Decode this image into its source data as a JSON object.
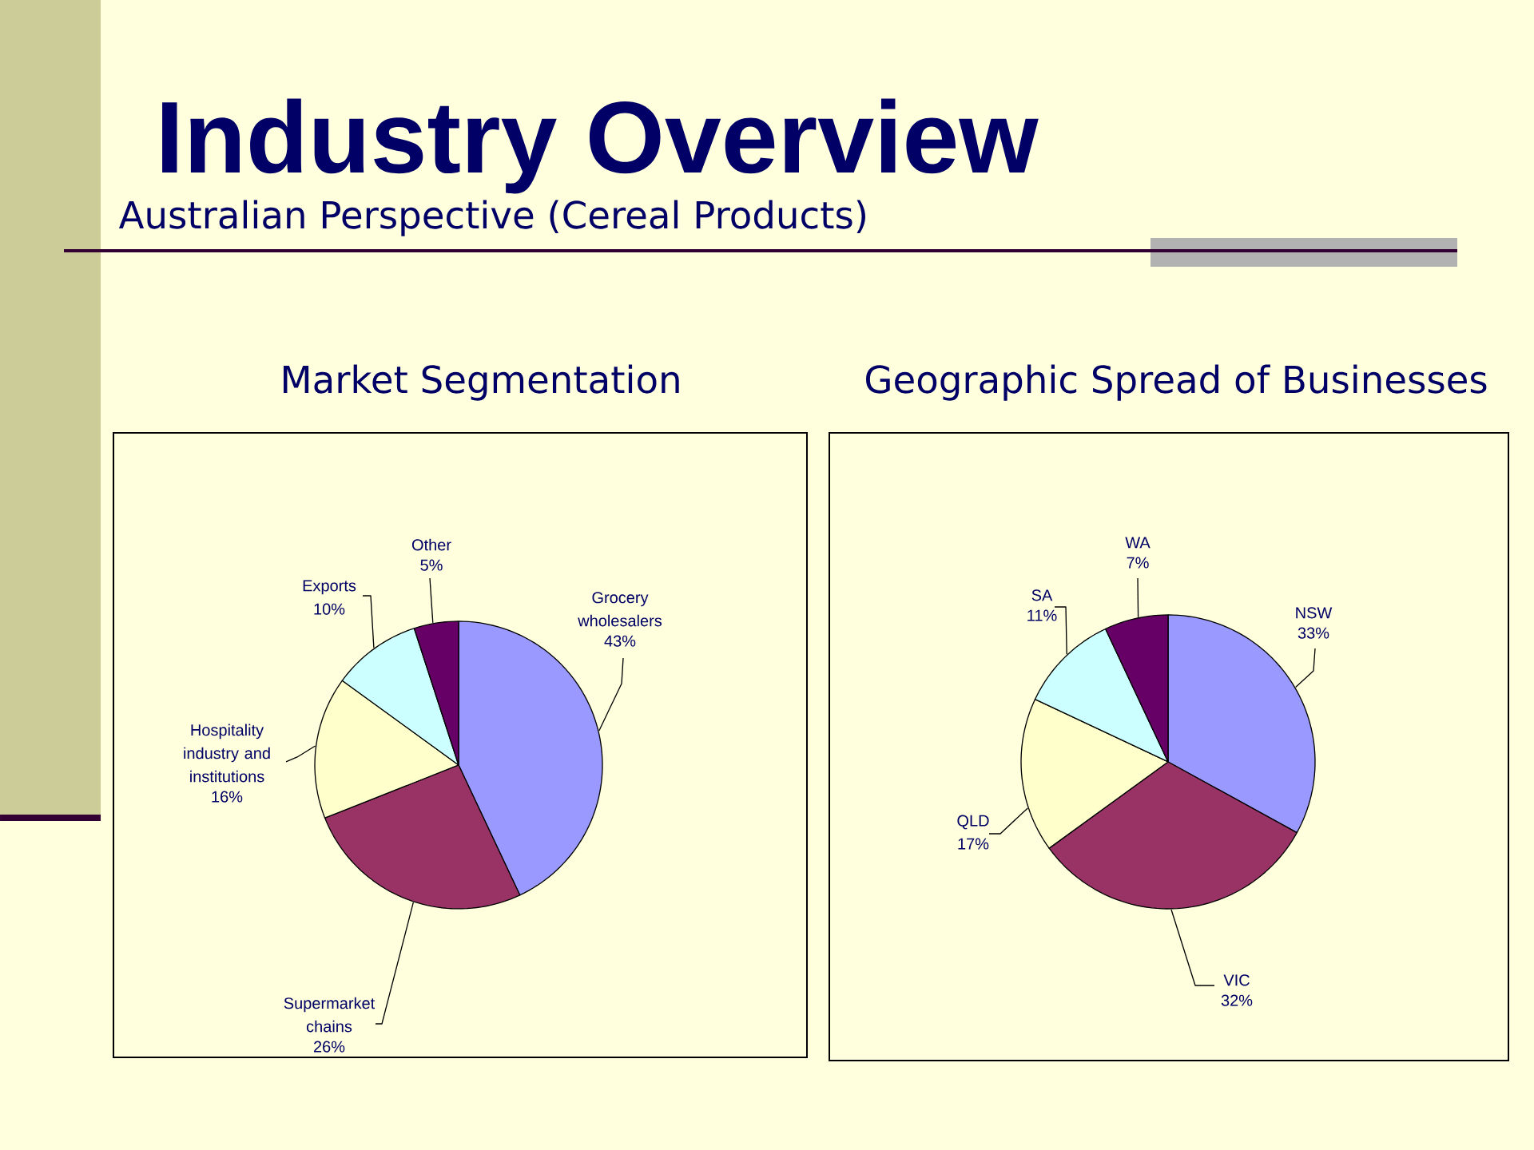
{
  "chart_data": [
    {
      "type": "other",
      "title": "Industry Overview",
      "subtitle": "Australian Perspective (Cereal Products)"
    },
    {
      "type": "pie",
      "title": "Market Segmentation",
      "categories": [
        "Grocery wholesalers",
        "Supermarket chains",
        "Hospitality industry and institutions",
        "Exports",
        "Other"
      ],
      "values": [
        43,
        26,
        16,
        10,
        5
      ],
      "value_labels": [
        "43%",
        "26%",
        "16%",
        "10%",
        "5%"
      ],
      "colors": [
        "#9999ff",
        "#993366",
        "#ffffcc",
        "#ccffff",
        "#660066"
      ]
    },
    {
      "type": "pie",
      "title": "Geographic Spread of Businesses",
      "categories": [
        "NSW",
        "VIC",
        "QLD",
        "SA",
        "WA"
      ],
      "values": [
        33,
        32,
        17,
        11,
        7
      ],
      "value_labels": [
        "33%",
        "32%",
        "17%",
        "11%",
        "7%"
      ],
      "colors": [
        "#9999ff",
        "#993366",
        "#ffffcc",
        "#ccffff",
        "#660066"
      ]
    }
  ]
}
